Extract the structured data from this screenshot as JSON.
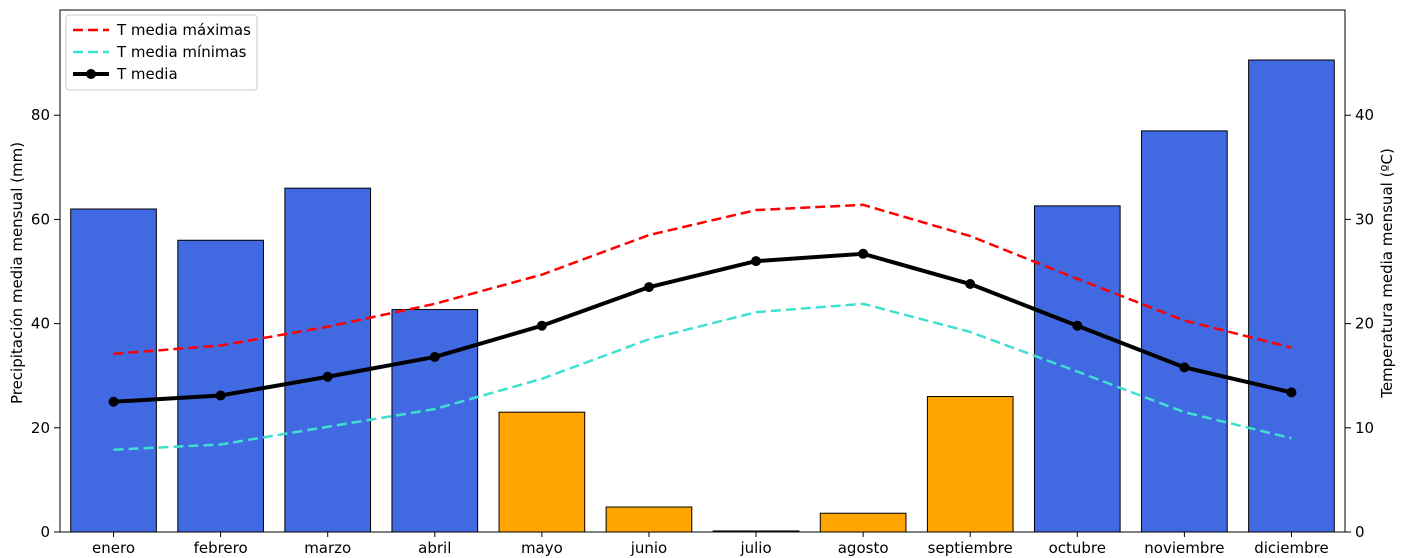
{
  "chart_data": {
    "type": "bar+line",
    "categories": [
      "enero",
      "febrero",
      "marzo",
      "abril",
      "mayo",
      "junio",
      "julio",
      "agosto",
      "septiembre",
      "octubre",
      "noviembre",
      "diciembre"
    ],
    "precipitation": {
      "values": [
        62,
        56,
        66,
        42.7,
        23,
        4.8,
        0.2,
        3.6,
        26,
        62.6,
        77,
        90.6
      ],
      "colors": [
        "#4169e1",
        "#4169e1",
        "#4169e1",
        "#4169e1",
        "#ffa500",
        "#ffa500",
        "#ffa500",
        "#ffa500",
        "#ffa500",
        "#4169e1",
        "#4169e1",
        "#4169e1"
      ]
    },
    "series": [
      {
        "name": "T media máximas",
        "values": [
          17.1,
          17.9,
          19.7,
          21.9,
          24.7,
          28.5,
          30.9,
          31.4,
          28.4,
          24.3,
          20.3,
          17.7
        ],
        "color": "#ff0000",
        "style": "dashed",
        "axis": "right"
      },
      {
        "name": "T media mínimas",
        "values": [
          7.9,
          8.4,
          10.1,
          11.8,
          14.7,
          18.5,
          21.1,
          21.9,
          19.2,
          15.4,
          11.5,
          9.0
        ],
        "color": "#40e0d0",
        "style": "dashed",
        "axis": "right"
      },
      {
        "name": "T media",
        "values": [
          12.5,
          13.1,
          14.9,
          16.8,
          19.8,
          23.5,
          26.0,
          26.7,
          23.8,
          19.8,
          15.8,
          13.4
        ],
        "color": "#000000",
        "style": "solid-markers",
        "axis": "right"
      }
    ],
    "ylabel_left": "Precipitación media mensual (mm)",
    "ylabel_right": "Temperatura media mensual (ºC)",
    "ylim_left": [
      0,
      100.2
    ],
    "ylim_right": [
      0,
      50.1
    ],
    "yticks_left": [
      0,
      20,
      40,
      60,
      80
    ],
    "yticks_right": [
      0,
      10,
      20,
      30,
      40
    ],
    "grid": false,
    "legend_position": "top-left"
  }
}
